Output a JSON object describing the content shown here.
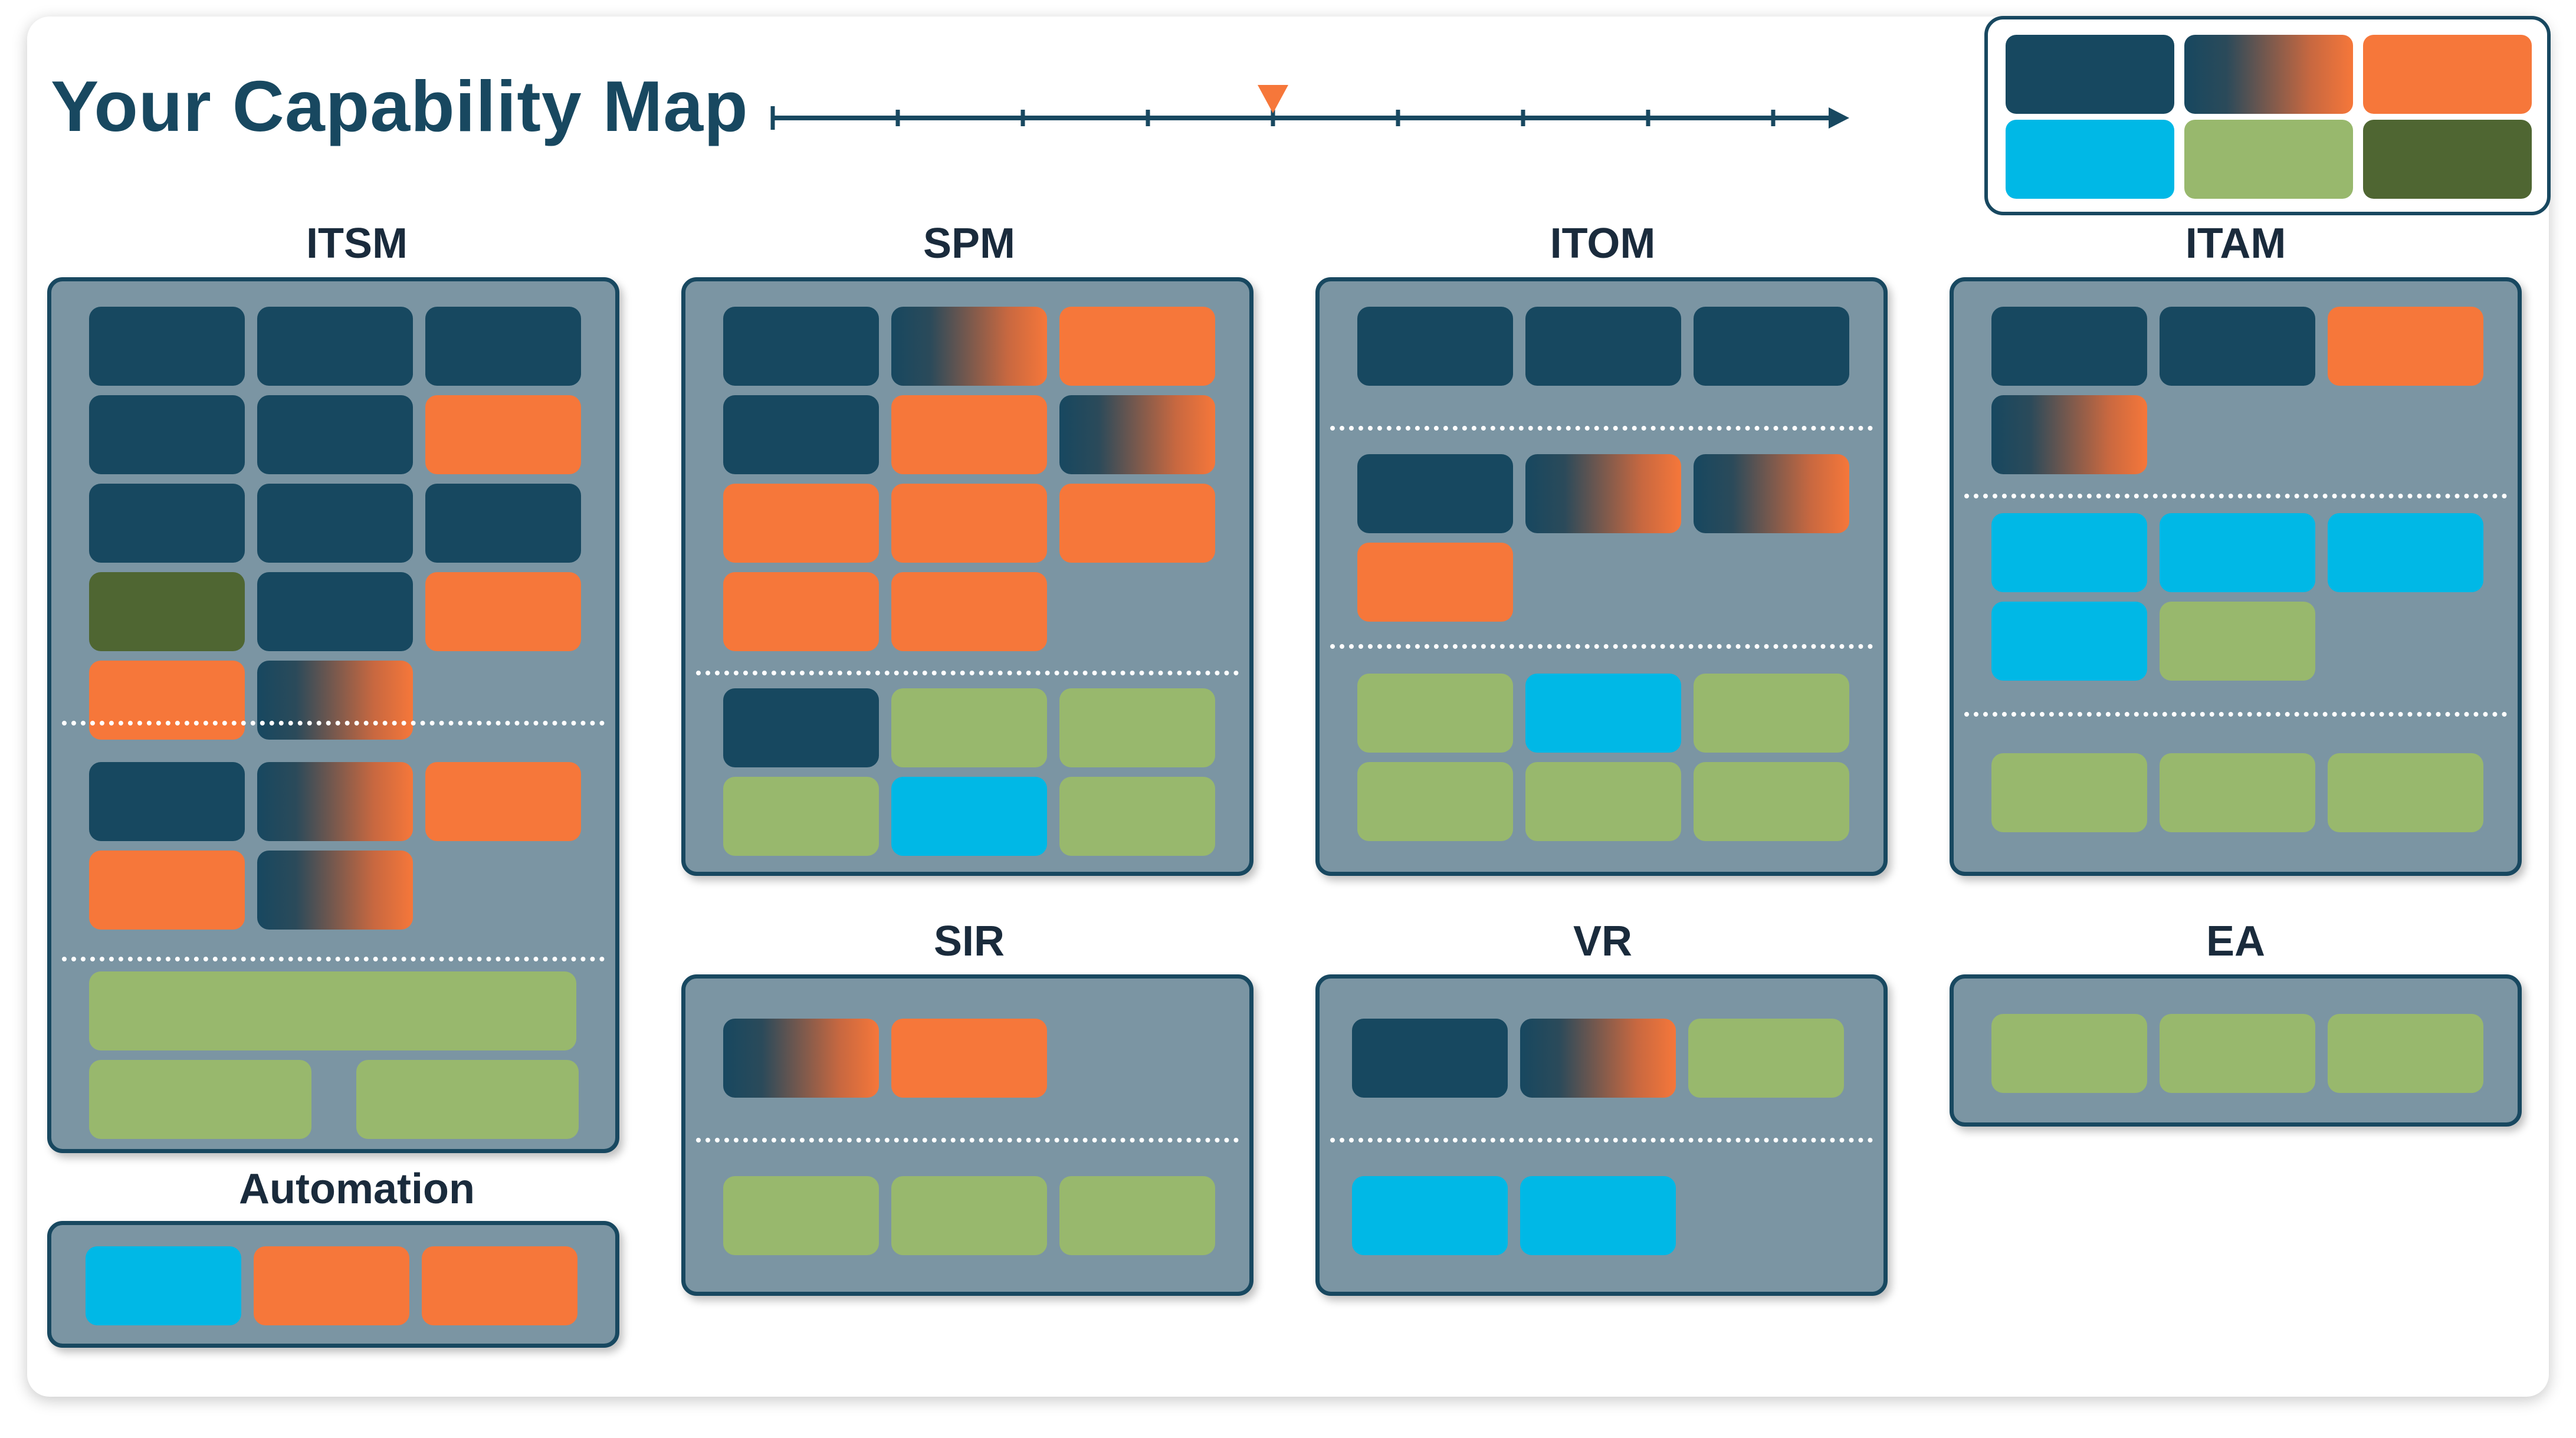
{
  "page": {
    "title": "Your Capability Map"
  },
  "colors": {
    "navy": "#174860",
    "gradient": "linear-gradient(90deg,#174860 0%,#2b4a5a 25%,#c86840 75%,#f6773a 100%)",
    "orange": "#f6773a",
    "cyan": "#00b8e6",
    "lightgreen": "#98b86d",
    "darkgreen": "#4f6632"
  },
  "legend": {
    "chips": [
      {
        "color": "navy"
      },
      {
        "color": "gradient"
      },
      {
        "color": "orange"
      },
      {
        "color": "cyan"
      },
      {
        "color": "lightgreen"
      },
      {
        "color": "darkgreen"
      }
    ]
  },
  "timeline": {
    "ticks": 9,
    "marker_index": 4,
    "marker_color": "#f6773a"
  },
  "groups": {
    "itsm": {
      "label": "ITSM",
      "tiles": [
        [
          "navy",
          "navy",
          "navy"
        ],
        [
          "navy",
          "navy",
          "orange"
        ],
        [
          "navy",
          "navy",
          "navy"
        ],
        [
          "darkgreen",
          "navy",
          "orange"
        ],
        [
          "orange",
          "gradient"
        ],
        [
          "navy",
          "gradient",
          "orange"
        ],
        [
          "orange",
          "gradient"
        ],
        [
          "lightgreen"
        ],
        [
          "lightgreen",
          "lightgreen"
        ]
      ]
    },
    "automation": {
      "label": "Automation",
      "tiles": [
        [
          "cyan",
          "orange",
          "orange"
        ]
      ]
    },
    "spm": {
      "label": "SPM",
      "tiles": [
        [
          "navy",
          "gradient",
          "orange"
        ],
        [
          "navy",
          "orange",
          "gradient"
        ],
        [
          "orange",
          "orange",
          "orange"
        ],
        [
          "orange",
          "orange"
        ],
        [
          "navy",
          "lightgreen",
          "lightgreen"
        ],
        [
          "lightgreen",
          "cyan",
          "lightgreen"
        ]
      ]
    },
    "itom": {
      "label": "ITOM",
      "tiles": [
        [
          "navy",
          "navy",
          "navy"
        ],
        [
          "navy",
          "gradient",
          "gradient"
        ],
        [
          "orange"
        ],
        [
          "lightgreen",
          "cyan",
          "lightgreen"
        ],
        [
          "lightgreen",
          "lightgreen",
          "lightgreen"
        ]
      ]
    },
    "itam": {
      "label": "ITAM",
      "tiles": [
        [
          "navy",
          "navy",
          "orange"
        ],
        [
          "gradient"
        ],
        [
          "cyan",
          "cyan",
          "cyan"
        ],
        [
          "cyan",
          "lightgreen"
        ],
        [
          "lightgreen",
          "lightgreen",
          "lightgreen"
        ]
      ]
    },
    "sir": {
      "label": "SIR",
      "tiles": [
        [
          "gradient",
          "orange"
        ],
        [
          "lightgreen",
          "lightgreen",
          "lightgreen"
        ]
      ]
    },
    "vr": {
      "label": "VR",
      "tiles": [
        [
          "navy",
          "gradient",
          "lightgreen"
        ],
        [
          "cyan",
          "cyan"
        ]
      ]
    },
    "ea": {
      "label": "EA",
      "tiles": [
        [
          "lightgreen",
          "lightgreen",
          "lightgreen"
        ]
      ]
    }
  }
}
